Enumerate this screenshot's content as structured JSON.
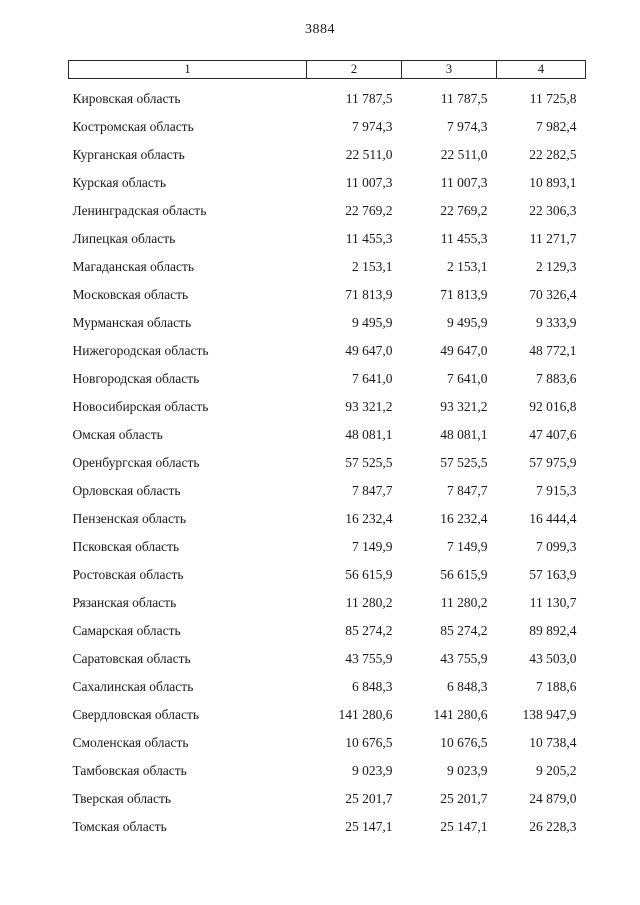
{
  "page_number": "3884",
  "table": {
    "headers": [
      "1",
      "2",
      "3",
      "4"
    ],
    "rows": [
      [
        "Кировская область",
        "11 787,5",
        "11 787,5",
        "11 725,8"
      ],
      [
        "Костромская область",
        "7 974,3",
        "7 974,3",
        "7 982,4"
      ],
      [
        "Курганская область",
        "22 511,0",
        "22 511,0",
        "22 282,5"
      ],
      [
        "Курская область",
        "11 007,3",
        "11 007,3",
        "10 893,1"
      ],
      [
        "Ленинградская область",
        "22 769,2",
        "22 769,2",
        "22 306,3"
      ],
      [
        "Липецкая область",
        "11 455,3",
        "11 455,3",
        "11 271,7"
      ],
      [
        "Магаданская область",
        "2 153,1",
        "2 153,1",
        "2 129,3"
      ],
      [
        "Московская область",
        "71 813,9",
        "71 813,9",
        "70 326,4"
      ],
      [
        "Мурманская область",
        "9 495,9",
        "9 495,9",
        "9 333,9"
      ],
      [
        "Нижегородская область",
        "49 647,0",
        "49 647,0",
        "48 772,1"
      ],
      [
        "Новгородская область",
        "7 641,0",
        "7 641,0",
        "7 883,6"
      ],
      [
        "Новосибирская область",
        "93 321,2",
        "93 321,2",
        "92 016,8"
      ],
      [
        "Омская область",
        "48 081,1",
        "48 081,1",
        "47 407,6"
      ],
      [
        "Оренбургская область",
        "57 525,5",
        "57 525,5",
        "57 975,9"
      ],
      [
        "Орловская область",
        "7 847,7",
        "7 847,7",
        "7 915,3"
      ],
      [
        "Пензенская область",
        "16 232,4",
        "16 232,4",
        "16 444,4"
      ],
      [
        "Псковская область",
        "7 149,9",
        "7 149,9",
        "7 099,3"
      ],
      [
        "Ростовская область",
        "56 615,9",
        "56 615,9",
        "57 163,9"
      ],
      [
        "Рязанская область",
        "11 280,2",
        "11 280,2",
        "11 130,7"
      ],
      [
        "Самарская область",
        "85 274,2",
        "85 274,2",
        "89 892,4"
      ],
      [
        "Саратовская область",
        "43 755,9",
        "43 755,9",
        "43 503,0"
      ],
      [
        "Сахалинская область",
        "6 848,3",
        "6 848,3",
        "7 188,6"
      ],
      [
        "Свердловская область",
        "141 280,6",
        "141 280,6",
        "138 947,9"
      ],
      [
        "Смоленская область",
        "10 676,5",
        "10 676,5",
        "10 738,4"
      ],
      [
        "Тамбовская область",
        "9 023,9",
        "9 023,9",
        "9 205,2"
      ],
      [
        "Тверская область",
        "25 201,7",
        "25 201,7",
        "24 879,0"
      ],
      [
        "Томская область",
        "25 147,1",
        "25 147,1",
        "26 228,3"
      ]
    ]
  }
}
